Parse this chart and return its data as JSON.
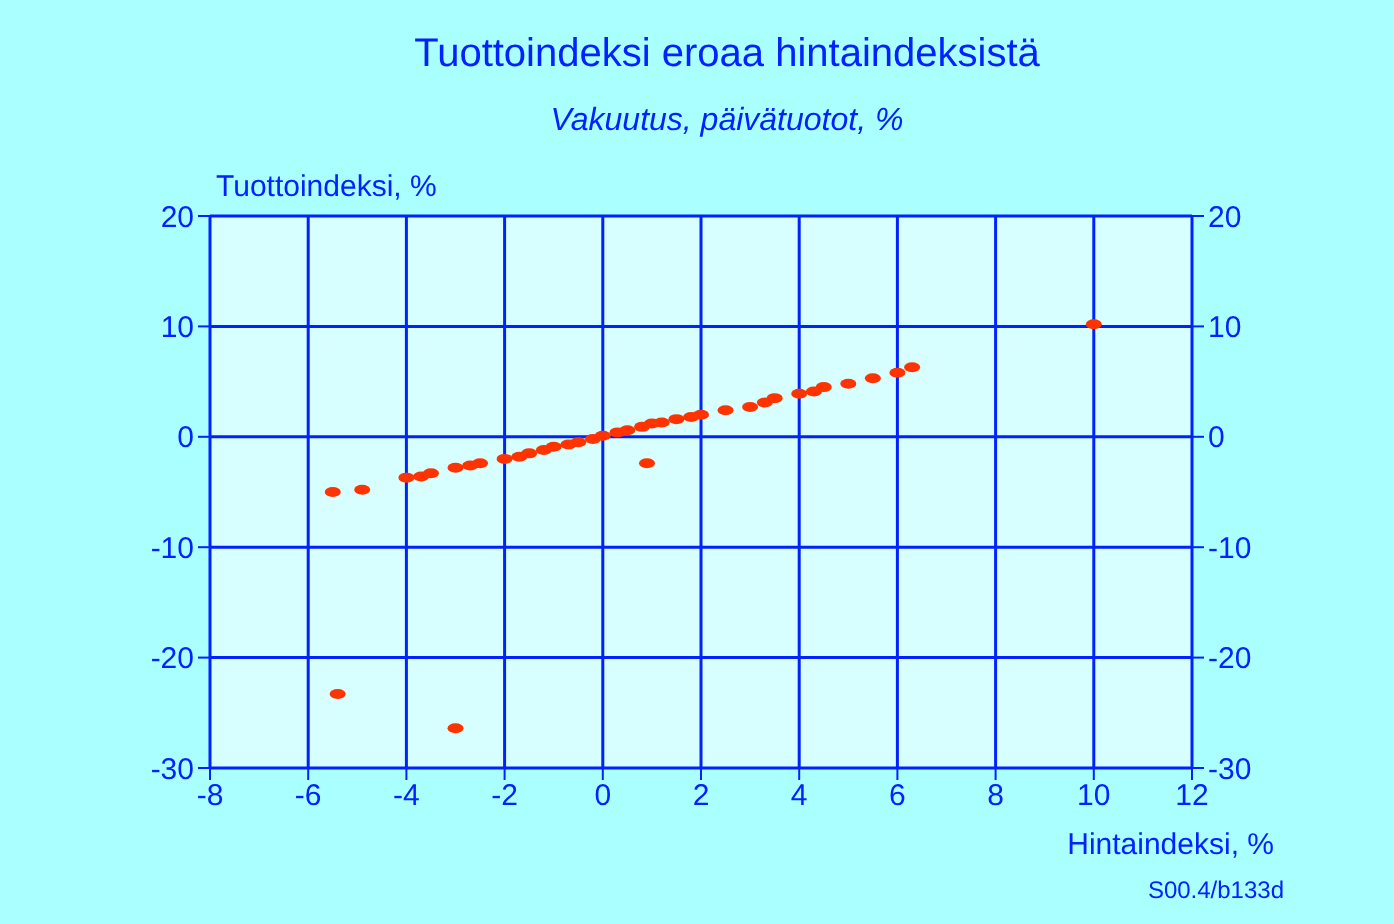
{
  "chart_data": {
    "type": "scatter",
    "title": "Tuottoindeksi eroaa hintaindeksistä",
    "subtitle": "Vakuutus, päivätuotot, %",
    "xlabel": "Hintaindeksi, %",
    "ylabel": "Tuottoindeksi, %",
    "annotations": [
      "S00.4/b133d"
    ],
    "x": [
      -5.5,
      -4.9,
      -4.0,
      -3.7,
      -3.5,
      -3.0,
      -2.7,
      -2.5,
      -2.0,
      -1.7,
      -1.5,
      -1.2,
      -1.0,
      -0.7,
      -0.5,
      -0.2,
      0.0,
      0.3,
      0.5,
      0.8,
      1.0,
      1.2,
      1.5,
      1.8,
      2.0,
      2.5,
      3.0,
      3.3,
      3.5,
      4.0,
      4.3,
      4.5,
      5.0,
      5.5,
      6.0,
      6.3,
      0.9,
      10.0,
      -5.4,
      -3.0
    ],
    "values": [
      -5.0,
      -4.8,
      -3.7,
      -3.6,
      -3.3,
      -2.8,
      -2.6,
      -2.4,
      -2.0,
      -1.8,
      -1.5,
      -1.2,
      -0.9,
      -0.7,
      -0.5,
      -0.2,
      0.1,
      0.4,
      0.6,
      0.9,
      1.2,
      1.3,
      1.6,
      1.8,
      2.0,
      2.4,
      2.7,
      3.1,
      3.5,
      3.9,
      4.1,
      4.5,
      4.8,
      5.3,
      5.8,
      6.3,
      -2.4,
      10.2,
      -23.3,
      -26.4
    ],
    "color": "#ff3300",
    "marker": "circle",
    "grid": true,
    "xlim": [
      -8,
      12
    ],
    "xticks": [
      -8,
      -6,
      -4,
      -2,
      0,
      2,
      4,
      6,
      8,
      10,
      12
    ],
    "ylim": [
      -30,
      20
    ],
    "yticks": [
      -30,
      -20,
      -10,
      0,
      10,
      20
    ],
    "y2lim": [
      -30,
      20
    ],
    "y2ticks": [
      -30,
      -20,
      -10,
      0,
      10,
      20
    ]
  }
}
